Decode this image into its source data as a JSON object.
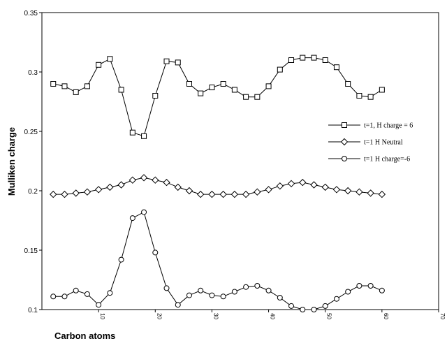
{
  "chart_data": {
    "type": "line",
    "xlabel": "Carbon atoms",
    "ylabel": "Mulliken charge",
    "xlim": [
      0,
      70
    ],
    "ylim": [
      0.1,
      0.35
    ],
    "x_ticks": [
      10,
      20,
      30,
      40,
      50,
      60,
      70
    ],
    "x_tick_labels": [
      "10",
      "20",
      "30",
      "40",
      "50",
      "60",
      "70"
    ],
    "y_ticks": [
      0.1,
      0.15,
      0.2,
      0.25,
      0.3,
      0.35
    ],
    "y_tick_labels": [
      "0.1",
      "0.15",
      "0.2",
      "0.25",
      "0.3",
      "0.35"
    ],
    "grid": false,
    "legend_position": "right",
    "x": [
      2,
      4,
      6,
      8,
      10,
      12,
      14,
      16,
      18,
      20,
      22,
      24,
      26,
      28,
      30,
      32,
      34,
      36,
      38,
      40,
      42,
      44,
      46,
      48,
      50,
      52,
      54,
      56,
      58,
      60
    ],
    "series": [
      {
        "name": "t=1, H charge = 6",
        "marker": "square",
        "values": [
          0.29,
          0.288,
          0.283,
          0.288,
          0.306,
          0.311,
          0.285,
          0.249,
          0.246,
          0.28,
          0.309,
          0.308,
          0.29,
          0.282,
          0.287,
          0.29,
          0.285,
          0.279,
          0.279,
          0.288,
          0.302,
          0.31,
          0.312,
          0.312,
          0.31,
          0.304,
          0.29,
          0.28,
          0.279,
          0.285
        ]
      },
      {
        "name": "t=1 H Neutral",
        "marker": "diamond",
        "values": [
          0.197,
          0.197,
          0.198,
          0.199,
          0.201,
          0.203,
          0.205,
          0.209,
          0.211,
          0.209,
          0.207,
          0.203,
          0.2,
          0.197,
          0.197,
          0.197,
          0.197,
          0.197,
          0.199,
          0.201,
          0.204,
          0.206,
          0.207,
          0.205,
          0.203,
          0.201,
          0.2,
          0.199,
          0.198,
          0.197
        ]
      },
      {
        "name": "t=1  H charge=-6",
        "marker": "circle",
        "values": [
          0.111,
          0.111,
          0.116,
          0.113,
          0.104,
          0.114,
          0.142,
          0.177,
          0.182,
          0.148,
          0.118,
          0.104,
          0.112,
          0.116,
          0.112,
          0.111,
          0.115,
          0.119,
          0.12,
          0.116,
          0.11,
          0.103,
          0.1,
          0.1,
          0.103,
          0.109,
          0.115,
          0.12,
          0.12,
          0.116
        ]
      }
    ]
  }
}
